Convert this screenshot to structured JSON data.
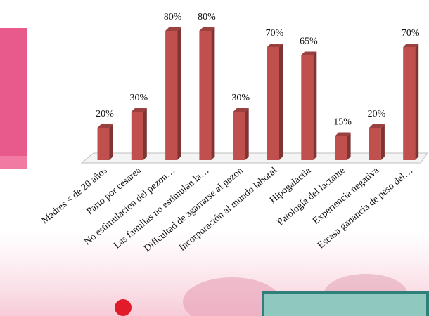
{
  "chart_data": {
    "type": "bar3d",
    "categories": [
      "Madres < de 20 años",
      "Parto por cesarea",
      "No estimulacion del pezon…",
      "Las familias no estimulan la…",
      "Dificultad de agarrarse al pezon",
      "Incorporación al mundo laboral",
      "Hipogalactia",
      "Patología del lactante",
      "Experiencia negativa",
      "Escasa ganancia de peso del…"
    ],
    "values": [
      20,
      30,
      80,
      80,
      30,
      70,
      65,
      15,
      20,
      70
    ],
    "value_labels": [
      "20%",
      "30%",
      "80%",
      "80%",
      "30%",
      "70%",
      "65%",
      "15%",
      "20%",
      "70%"
    ],
    "color": "#c0504d"
  }
}
